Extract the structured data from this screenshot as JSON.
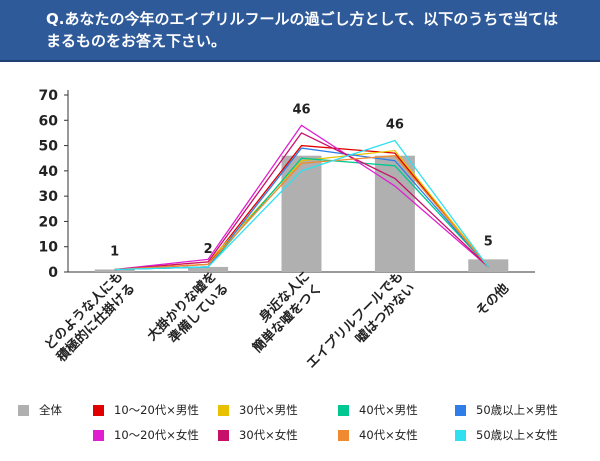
{
  "header": {
    "title": "Q.あなたの今年のエイプリルフールの過ごし方として、以下のうちで当てはまるものをお答え下さい。"
  },
  "chart_data": {
    "type": "bar",
    "categories": [
      "どのような人にも\n積極的に仕掛ける",
      "大掛かりな嘘を\n準備している",
      "身近な人に\n簡単な嘘をつく",
      "エイプリルフールでも\n嘘はつかない",
      "その他"
    ],
    "ylim": [
      0,
      70
    ],
    "yticks": [
      0,
      10,
      20,
      30,
      40,
      50,
      60,
      70
    ],
    "grid": false,
    "bar_series": {
      "name": "全体",
      "color": "#b0b0b0",
      "values": [
        1,
        2,
        46,
        46,
        5
      ],
      "labels": [
        "1",
        "2",
        "46",
        "46",
        "5"
      ]
    },
    "line_series": [
      {
        "name": "10～20代×男性",
        "color": "#e00000",
        "values": [
          1,
          3,
          50,
          47,
          2
        ]
      },
      {
        "name": "30代×男性",
        "color": "#e8c000",
        "values": [
          1,
          4,
          44,
          48,
          2
        ]
      },
      {
        "name": "40代×男性",
        "color": "#00c890",
        "values": [
          1,
          2,
          45,
          42,
          2
        ]
      },
      {
        "name": "50歳以上×男性",
        "color": "#2f7ee8",
        "values": [
          1,
          2,
          49,
          44,
          2
        ]
      },
      {
        "name": "10～20代×女性",
        "color": "#e020d0",
        "values": [
          1,
          5,
          58,
          34,
          2
        ]
      },
      {
        "name": "30代×女性",
        "color": "#c8106a",
        "values": [
          1,
          4,
          55,
          37,
          2
        ]
      },
      {
        "name": "40代×女性",
        "color": "#f08a30",
        "values": [
          1,
          3,
          43,
          46,
          2
        ]
      },
      {
        "name": "50歳以上×女性",
        "color": "#30e0f0",
        "values": [
          1,
          2,
          40,
          52,
          2
        ]
      }
    ],
    "legend_placement": "bottom"
  }
}
